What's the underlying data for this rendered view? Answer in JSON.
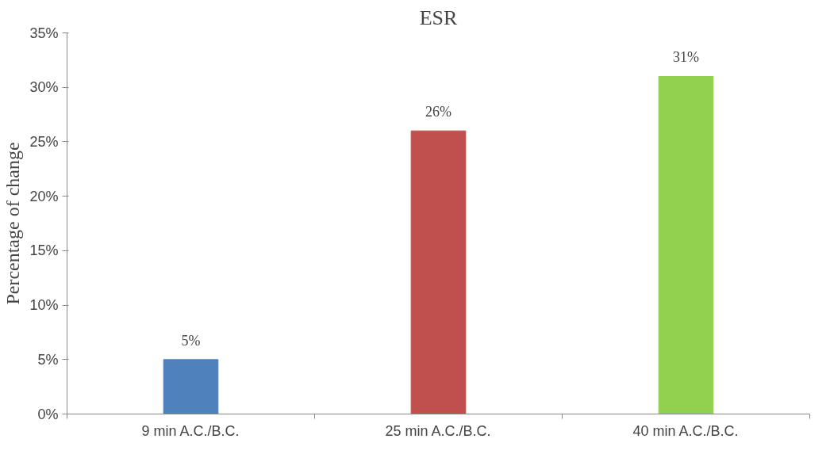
{
  "chart_data": {
    "type": "bar",
    "title": "ESR",
    "ylabel": "Percentage of change",
    "categories": [
      "9 min A.C./B.C.",
      "25 min A.C./B.C.",
      "40 min A.C./B.C."
    ],
    "values": [
      5,
      26,
      31
    ],
    "colors": [
      "#4f81bd",
      "#c0504d",
      "#92d050"
    ],
    "value_labels": [
      "5%",
      "26%",
      "31%"
    ],
    "ylim": [
      0,
      35
    ],
    "yticks": [
      {
        "value": 0,
        "label": "0%"
      },
      {
        "value": 5,
        "label": "5%"
      },
      {
        "value": 10,
        "label": "10%"
      },
      {
        "value": 15,
        "label": "15%"
      },
      {
        "value": 20,
        "label": "20%"
      },
      {
        "value": 25,
        "label": "25%"
      },
      {
        "value": 30,
        "label": "30%"
      },
      {
        "value": 35,
        "label": "35%"
      }
    ],
    "grid": false
  }
}
